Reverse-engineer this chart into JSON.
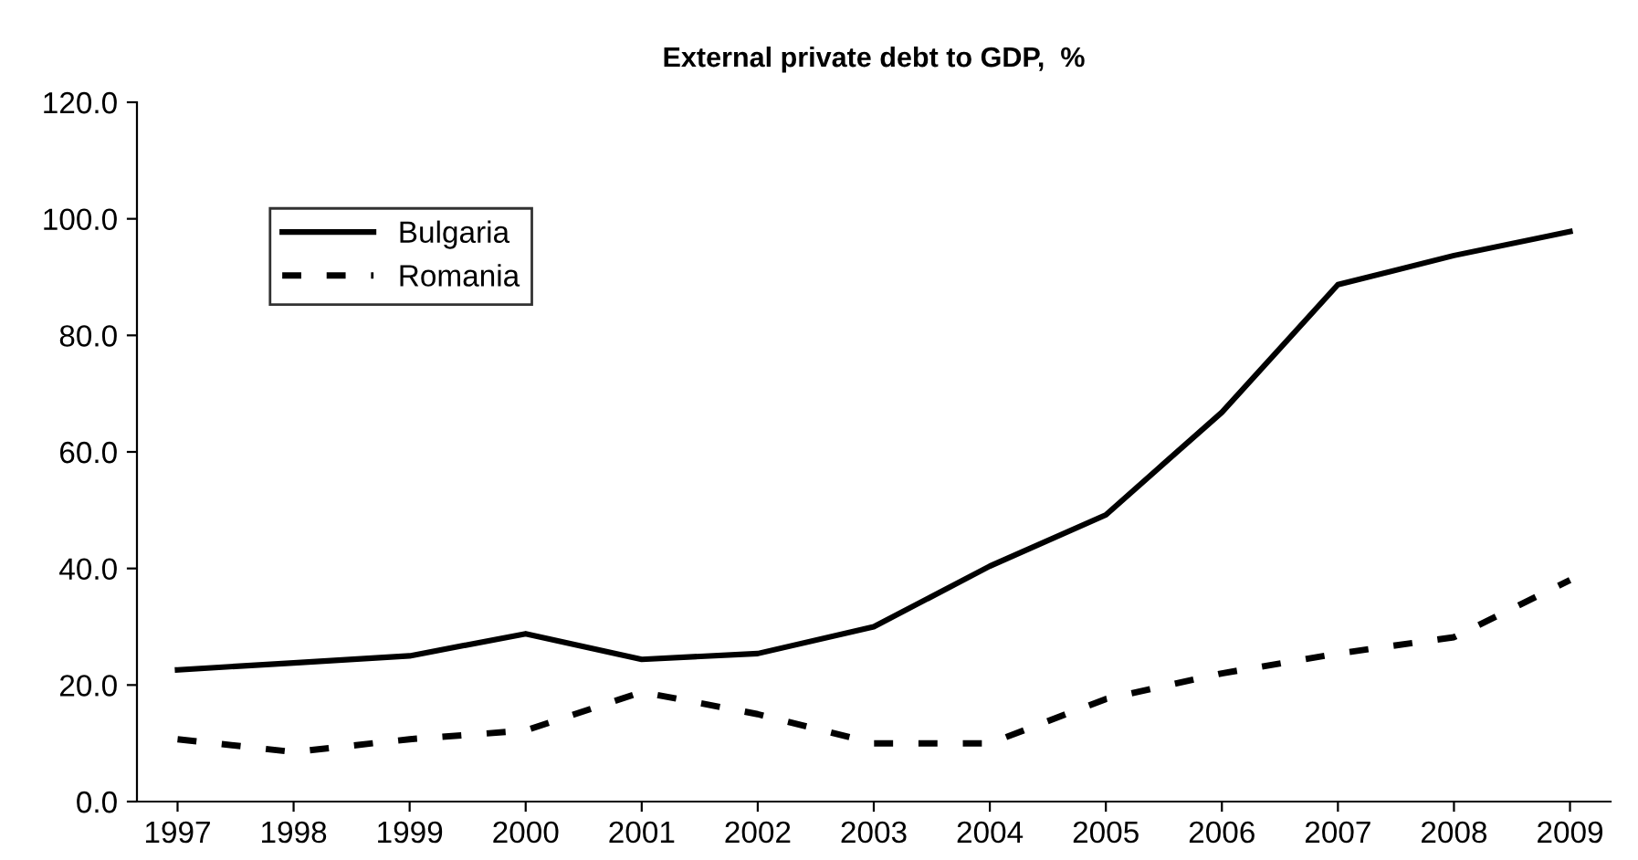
{
  "chart_data": {
    "type": "line",
    "title": "External private debt to GDP,  %",
    "categories": [
      "1997",
      "1998",
      "1999",
      "2000",
      "2001",
      "2002",
      "2003",
      "2004",
      "2005",
      "2006",
      "2007",
      "2008",
      "2009"
    ],
    "series": [
      {
        "name": "Bulgaria",
        "color": "#000000",
        "line_style": "solid",
        "values": [
          22.6,
          23.8,
          25.0,
          28.8,
          24.4,
          25.4,
          30.0,
          40.4,
          49.2,
          66.8,
          88.7,
          93.7,
          97.8
        ]
      },
      {
        "name": "Romania",
        "color": "#000000",
        "line_style": "dashed",
        "values": [
          10.7,
          8.5,
          10.7,
          12.2,
          18.8,
          15.0,
          10.0,
          10.0,
          17.6,
          22.0,
          25.4,
          28.2,
          38.0
        ]
      }
    ],
    "ylim": [
      0,
      120
    ],
    "yticks": [
      {
        "value": 0,
        "label": "0.0"
      },
      {
        "value": 20,
        "label": "20.0"
      },
      {
        "value": 40,
        "label": "40.0"
      },
      {
        "value": 60,
        "label": "60.0"
      },
      {
        "value": 80,
        "label": "80.0"
      },
      {
        "value": 100,
        "label": "100.0"
      },
      {
        "value": 120,
        "label": "120.0"
      }
    ],
    "grid": false,
    "legend": "upper left",
    "marker": "none"
  }
}
